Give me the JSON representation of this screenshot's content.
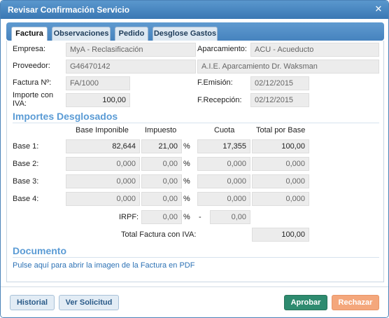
{
  "window": {
    "title": "Revisar Confirmación Servicio",
    "close_glyph": "✕"
  },
  "tabs": [
    "Factura",
    "Observaciones",
    "Pedido",
    "Desglose Gastos"
  ],
  "factura": {
    "empresa_label": "Empresa:",
    "empresa_value": "MyA - Reclasificación",
    "aparcamiento_label": "Aparcamiento:",
    "aparcamiento_value": "ACU - Acueducto",
    "proveedor_label": "Proveedor:",
    "proveedor_code": "G46470142",
    "proveedor_name": "A.I.E. Aparcamiento Dr. Waksman",
    "factura_no_label": "Factura Nº:",
    "factura_no_value": "FA/1000",
    "femision_label": "F.Emisión:",
    "femision_value": "02/12/2015",
    "importe_label_1": "Importe con",
    "importe_label_2": "IVA:",
    "importe_value": "100,00",
    "frecepcion_label": "F.Recepción:",
    "frecepcion_value": "02/12/2015"
  },
  "importes": {
    "section_title": "Importes Desglosados",
    "headers": {
      "base": "Base Imponible",
      "impuesto": "Impuesto",
      "cuota": "Cuota",
      "total": "Total por Base"
    },
    "pct_symbol": "%",
    "rows": [
      {
        "label": "Base 1:",
        "base": "82,644",
        "impuesto": "21,00",
        "cuota": "17,355",
        "total": "100,00"
      },
      {
        "label": "Base 2:",
        "base": "0,000",
        "impuesto": "0,00",
        "cuota": "0,000",
        "total": "0,000"
      },
      {
        "label": "Base 3:",
        "base": "0,000",
        "impuesto": "0,00",
        "cuota": "0,000",
        "total": "0,000"
      },
      {
        "label": "Base 4:",
        "base": "0,000",
        "impuesto": "0,00",
        "cuota": "0,000",
        "total": "0,000"
      }
    ],
    "irpf_label": "IRPF:",
    "irpf_value": "0,00",
    "irpf_dash": "-",
    "irpf_cuota": "0,00",
    "total_label": "Total Factura con IVA:",
    "total_value": "100,00"
  },
  "documento": {
    "section_title": "Documento",
    "link_text": "Pulse aquí para abrir la imagen de la Factura en PDF"
  },
  "footer": {
    "historial": "Historial",
    "ver_solicitud": "Ver Solicitud",
    "aprobar": "Aprobar",
    "rechazar": "Rechazar"
  },
  "colors": {
    "title_bar": "#3a78b4",
    "section": "#5a9bd5",
    "aprobar": "#2e8b6f",
    "rechazar": "#f4a77c",
    "link": "#2d72b5"
  }
}
